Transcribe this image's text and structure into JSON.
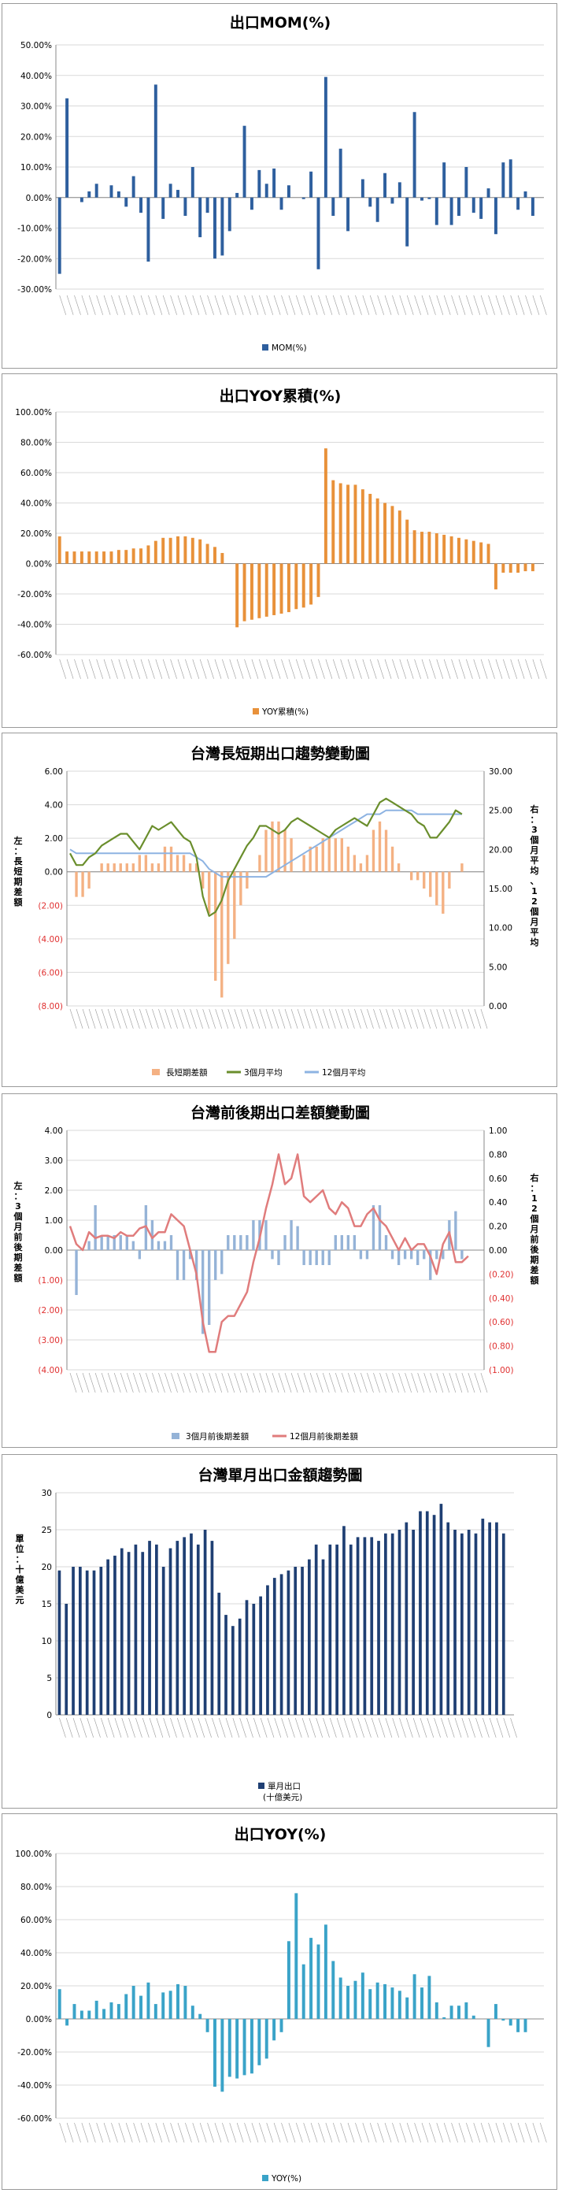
{
  "chart_data": [
    {
      "id": "mom",
      "type": "bar",
      "title": "出口MOM(%)",
      "legend": [
        "MOM(%)"
      ],
      "colors": [
        "#2e5f9e"
      ],
      "ylim": [
        -30,
        50
      ],
      "yticks": [
        "-30.00%",
        "-20.00%",
        "-10.00%",
        "0.00%",
        "10.00%",
        "20.00%",
        "30.00%",
        "40.00%",
        "50.00%"
      ],
      "n_slots": 66,
      "values": [
        -25,
        32.5,
        0,
        -1.5,
        2,
        4.5,
        0,
        4,
        2,
        -3,
        7,
        -5,
        -21,
        37,
        -7,
        4.5,
        2.5,
        -6,
        10,
        -13,
        -5,
        -20,
        -19,
        -11,
        1.5,
        23.5,
        -4,
        9,
        4.5,
        9.5,
        -4,
        4,
        0,
        -0.5,
        8.5,
        -23.5,
        39.5,
        -6,
        16,
        -11,
        0,
        6,
        -3,
        -8,
        8,
        -2,
        5,
        -16,
        28,
        -1,
        -0.5,
        -9,
        11.5,
        -9,
        -6,
        10,
        -5,
        -7,
        3,
        -12,
        11.5,
        12.5,
        -4,
        2,
        -6,
        0
      ]
    },
    {
      "id": "yoy-cum",
      "type": "bar",
      "title": "出口YOY累積(%)",
      "legend": [
        "YOY累積(%)"
      ],
      "colors": [
        "#e8913a"
      ],
      "ylim": [
        -60,
        100
      ],
      "yticks": [
        "-60.00%",
        "-40.00%",
        "-20.00%",
        "0.00%",
        "20.00%",
        "40.00%",
        "60.00%",
        "80.00%",
        "100.00%"
      ],
      "n_slots": 66,
      "values": [
        18,
        8,
        8,
        8,
        8,
        8,
        8,
        8,
        9,
        9,
        10,
        10,
        12,
        15,
        17,
        17,
        18,
        18,
        17,
        16,
        13,
        11,
        7,
        0,
        -42,
        -38,
        -37,
        -36,
        -35,
        -34,
        -33,
        -32,
        -30,
        -29,
        -27,
        -22,
        76,
        55,
        53,
        52,
        52,
        49,
        46,
        43,
        40,
        38,
        35,
        29,
        22,
        21,
        21,
        20,
        19,
        18,
        17,
        16,
        15,
        14,
        13,
        -17,
        -6,
        -6,
        -6,
        -5,
        -5,
        0
      ]
    },
    {
      "id": "trend",
      "type": "bar+line",
      "title": "台灣長短期出口趨勢變動圖",
      "legend": [
        "長短期差額",
        "3個月平均",
        "12個月平均"
      ],
      "colors": [
        "#f4b183",
        "#6a8e2c",
        "#8db3e2"
      ],
      "ylim_left": [
        -8,
        6
      ],
      "ylim_right": [
        0,
        30
      ],
      "yticks_left": [
        "(8.00)",
        "(6.00)",
        "(4.00)",
        "(2.00)",
        "0.00",
        "2.00",
        "4.00",
        "6.00"
      ],
      "yticks_right": [
        "0.00",
        "5.00",
        "10.00",
        "15.00",
        "20.00",
        "25.00",
        "30.00"
      ],
      "ylabel_left": "左：長短期差額",
      "ylabel_right": "右：3個月平均、12個月平均",
      "n_slots": 66,
      "bars": [
        0,
        -1.5,
        -1.5,
        -1,
        0,
        0.5,
        0.5,
        0.5,
        0.5,
        0.5,
        0.5,
        1,
        1,
        0.5,
        0.5,
        1.5,
        1.5,
        1,
        1,
        0.5,
        0.5,
        -1,
        -2.5,
        -6.5,
        -7.5,
        -5.5,
        -4,
        -2,
        -1,
        0,
        1,
        2.5,
        3,
        3,
        2.5,
        2,
        0,
        1,
        1.5,
        1.5,
        2,
        2,
        2,
        2,
        1.5,
        1,
        0.5,
        1,
        2.5,
        3,
        2.5,
        1.5,
        0.5,
        0,
        -0.5,
        -0.5,
        -1,
        -1.5,
        -2,
        -2.5,
        -1,
        0,
        0.5,
        0,
        0,
        0
      ],
      "avg3": [
        19.5,
        18,
        18,
        19,
        19.5,
        20.5,
        21,
        21.5,
        22,
        22,
        21,
        20,
        21.5,
        23,
        22.5,
        23,
        23.5,
        22.5,
        21.5,
        21,
        19,
        14,
        11.5,
        12,
        13.5,
        16,
        17.5,
        19,
        20.5,
        21.5,
        23,
        23,
        22.5,
        22,
        22.5,
        23.5,
        24,
        23.5,
        23,
        22.5,
        22,
        21.5,
        22.5,
        23,
        23.5,
        24,
        23.5,
        23,
        24.5,
        26,
        26.5,
        26,
        25.5,
        25,
        24.5,
        23.5,
        23,
        21.5,
        21.5,
        22.5,
        23.5,
        25,
        24.5,
        null,
        null,
        null
      ],
      "avg12": [
        20,
        19.5,
        19.5,
        19.5,
        19.5,
        19.5,
        19.5,
        19.5,
        19.5,
        19.5,
        19.5,
        19.5,
        19.5,
        19.5,
        19.5,
        19.5,
        19.5,
        19.5,
        19.5,
        19.5,
        19,
        18.5,
        17.5,
        17,
        16.5,
        16.5,
        16.5,
        16.5,
        16.5,
        16.5,
        16.5,
        16.5,
        17,
        17.5,
        18,
        18.5,
        19,
        19.5,
        20,
        20.5,
        21,
        21.5,
        22,
        22.5,
        23,
        23.5,
        24,
        24.5,
        24.5,
        24.5,
        25,
        25,
        25,
        25,
        25,
        24.5,
        24.5,
        24.5,
        24.5,
        24.5,
        24.5,
        24.5,
        24.5,
        null,
        null,
        null
      ]
    },
    {
      "id": "diff",
      "type": "bar+line",
      "title": "台灣前後期出口差額變動圖",
      "legend": [
        "3個月前後期差額",
        "12個月前後期差額"
      ],
      "colors": [
        "#95b3d7",
        "#e07c7c"
      ],
      "ylim_left": [
        -4,
        4
      ],
      "ylim_right": [
        -1,
        1
      ],
      "yticks_left": [
        "(4.00)",
        "(3.00)",
        "(2.00)",
        "(1.00)",
        "0.00",
        "1.00",
        "2.00",
        "3.00",
        "4.00"
      ],
      "yticks_right": [
        "(1.00)",
        "(0.80)",
        "(0.60)",
        "(0.40)",
        "(0.20)",
        "0.00",
        "0.20",
        "0.40",
        "0.60",
        "0.80",
        "1.00"
      ],
      "ylabel_left": "左：3個月前後期差額",
      "ylabel_right": "右：12個月前後期差額",
      "n_slots": 66,
      "bars": [
        0,
        -1.5,
        0,
        0.3,
        1.5,
        0.5,
        0.5,
        0.5,
        0.5,
        0.5,
        0.3,
        -0.3,
        1.5,
        1,
        0.3,
        0.3,
        0.5,
        -1,
        -1,
        -0.3,
        -1,
        -2.8,
        -2.5,
        -1,
        -0.8,
        0.5,
        0.5,
        0.5,
        0.5,
        1,
        1,
        1,
        -0.3,
        -0.5,
        0.5,
        1,
        0.8,
        -0.5,
        -0.5,
        -0.5,
        -0.5,
        -0.5,
        0.5,
        0.5,
        0.5,
        0.5,
        -0.3,
        -0.3,
        1.5,
        1.5,
        0.5,
        -0.3,
        -0.5,
        -0.3,
        -0.3,
        -0.5,
        -0.3,
        -1,
        -0.3,
        -0.3,
        1,
        1.3,
        -0.3,
        0,
        0,
        0
      ],
      "diff12": [
        0.2,
        0.05,
        0,
        0.15,
        0.1,
        0.12,
        0.12,
        0.1,
        0.15,
        0.12,
        0.12,
        0.18,
        0.2,
        0.1,
        0.15,
        0.15,
        0.3,
        0.25,
        0.2,
        0,
        -0.2,
        -0.6,
        -0.85,
        -0.85,
        -0.6,
        -0.55,
        -0.55,
        -0.45,
        -0.35,
        -0.1,
        0.1,
        0.35,
        0.55,
        0.8,
        0.55,
        0.6,
        0.8,
        0.45,
        0.4,
        0.45,
        0.5,
        0.35,
        0.3,
        0.4,
        0.35,
        0.2,
        0.2,
        0.3,
        0.35,
        0.25,
        0.2,
        0.1,
        0,
        0.1,
        0,
        0.05,
        0.05,
        -0.05,
        -0.2,
        0.05,
        0.15,
        -0.1,
        -0.1,
        -0.05,
        null,
        null
      ]
    },
    {
      "id": "monthly",
      "type": "bar",
      "title": "台灣單月出口金額趨勢圖",
      "legend": [
        "單月出口",
        "(十億美元)"
      ],
      "colors": [
        "#1f3f73"
      ],
      "ylim": [
        0,
        30
      ],
      "yticks": [
        "0",
        "5",
        "10",
        "15",
        "20",
        "25",
        "30"
      ],
      "ylabel": "單位：十億美元",
      "n_slots": 66,
      "values": [
        19.5,
        15,
        20,
        20,
        19.5,
        19.5,
        20,
        21,
        21.5,
        22.5,
        22,
        23,
        22,
        23.5,
        23,
        20,
        22.5,
        23.5,
        24,
        24.5,
        23,
        25,
        23.5,
        16.5,
        13.5,
        12,
        13,
        15.5,
        15,
        16,
        17.5,
        18.5,
        19,
        19.5,
        20,
        20,
        21,
        23,
        21,
        23,
        23,
        25.5,
        23,
        24,
        24,
        24,
        23.5,
        24.5,
        24.5,
        25,
        26,
        25,
        27.5,
        27.5,
        27,
        28.5,
        26,
        25,
        24.5,
        25,
        24.5,
        26.5,
        26,
        26,
        24.5,
        0
      ]
    },
    {
      "id": "yoy",
      "type": "bar",
      "title": "出口YOY(%)",
      "legend": [
        "YOY(%)"
      ],
      "colors": [
        "#3aa3c8"
      ],
      "ylim": [
        -60,
        100
      ],
      "yticks": [
        "-60.00%",
        "-40.00%",
        "-20.00%",
        "0.00%",
        "20.00%",
        "40.00%",
        "60.00%",
        "80.00%",
        "100.00%"
      ],
      "n_slots": 66,
      "values": [
        18,
        -4,
        9,
        5,
        5,
        11,
        6,
        10,
        9,
        15,
        20,
        14,
        22,
        9,
        16,
        17,
        21,
        20,
        8,
        3,
        -8,
        -41,
        -44,
        -35,
        -36,
        -34,
        -33,
        -28,
        -24,
        -13,
        -8,
        47,
        76,
        33,
        49,
        45,
        57,
        35,
        25,
        20,
        23,
        28,
        18,
        22,
        21,
        19,
        17,
        13,
        27,
        19,
        26,
        10,
        1,
        8,
        8,
        10,
        2,
        0,
        -17,
        9,
        -1,
        -4,
        -8,
        -8,
        0,
        0
      ]
    }
  ]
}
